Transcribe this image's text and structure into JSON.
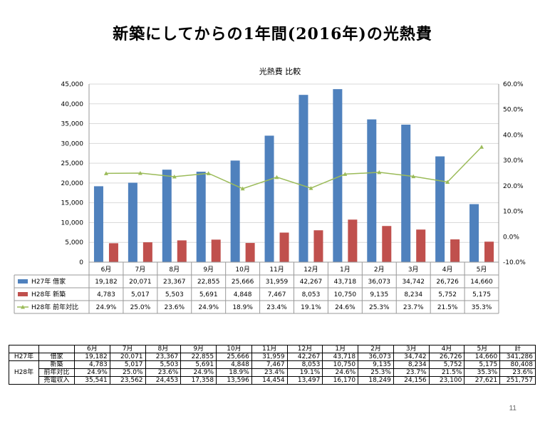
{
  "slide": {
    "title": "新築にしてからの1年間(2016年)の光熱費",
    "page_number": "11"
  },
  "chart_data": {
    "type": "bar",
    "title": "光熱費 比較",
    "categories": [
      "6月",
      "7月",
      "8月",
      "9月",
      "10月",
      "11月",
      "12月",
      "1月",
      "2月",
      "3月",
      "4月",
      "5月"
    ],
    "series": [
      {
        "name": "H27年 借家",
        "type": "bar",
        "color": "#4F81BD",
        "values": [
          19182,
          20071,
          23367,
          22855,
          25666,
          31959,
          42267,
          43718,
          36073,
          34742,
          26726,
          14660
        ],
        "labels": [
          "19,182",
          "20,071",
          "23,367",
          "22,855",
          "25,666",
          "31,959",
          "42,267",
          "43,718",
          "36,073",
          "34,742",
          "26,726",
          "14,660"
        ]
      },
      {
        "name": "H28年 新築",
        "type": "bar",
        "color": "#C0504D",
        "values": [
          4783,
          5017,
          5503,
          5691,
          4848,
          7467,
          8053,
          10750,
          9135,
          8234,
          5752,
          5175
        ],
        "labels": [
          "4,783",
          "5,017",
          "5,503",
          "5,691",
          "4,848",
          "7,467",
          "8,053",
          "10,750",
          "9,135",
          "8,234",
          "5,752",
          "5,175"
        ]
      },
      {
        "name": "H28年 前年対比",
        "type": "line",
        "axis": "right",
        "color": "#9BBB59",
        "values": [
          24.9,
          25.0,
          23.6,
          24.9,
          18.9,
          23.4,
          19.1,
          24.6,
          25.3,
          23.7,
          21.5,
          35.3
        ],
        "labels": [
          "24.9%",
          "25.0%",
          "23.6%",
          "24.9%",
          "18.9%",
          "23.4%",
          "19.1%",
          "24.6%",
          "25.3%",
          "23.7%",
          "21.5%",
          "35.3%"
        ]
      }
    ],
    "y_left": {
      "min": 0,
      "max": 45000,
      "step": 5000,
      "ticks": [
        "0",
        "5,000",
        "10,000",
        "15,000",
        "20,000",
        "25,000",
        "30,000",
        "35,000",
        "40,000",
        "45,000"
      ]
    },
    "y_right": {
      "min": -10,
      "max": 60,
      "step": 10,
      "ticks": [
        "-10.0%",
        "0.0%",
        "10.0%",
        "20.0%",
        "30.0%",
        "40.0%",
        "50.0%",
        "60.0%"
      ]
    },
    "grid": true,
    "legend": "data-table-below"
  },
  "summary_table": {
    "headers": [
      "6月",
      "7月",
      "8月",
      "9月",
      "10月",
      "11月",
      "12月",
      "1月",
      "2月",
      "3月",
      "4月",
      "5月",
      "計"
    ],
    "group_h27": "H27年",
    "group_h28": "H28年",
    "rows": [
      {
        "label": "借家",
        "values": [
          "19,182",
          "20,071",
          "23,367",
          "22,855",
          "25,666",
          "31,959",
          "42,267",
          "43,718",
          "36,073",
          "34,742",
          "26,726",
          "14,660",
          "341,286"
        ]
      },
      {
        "label": "新築",
        "values": [
          "4,783",
          "5,017",
          "5,503",
          "5,691",
          "4,848",
          "7,467",
          "8,053",
          "10,750",
          "9,135",
          "8,234",
          "5,752",
          "5,175",
          "80,408"
        ]
      },
      {
        "label": "前年対比",
        "values": [
          "24.9%",
          "25.0%",
          "23.6%",
          "24.9%",
          "18.9%",
          "23.4%",
          "19.1%",
          "24.6%",
          "25.3%",
          "23.7%",
          "21.5%",
          "35.3%",
          "23.6%"
        ]
      },
      {
        "label": "売電収入",
        "values": [
          "35,541",
          "23,562",
          "24,453",
          "17,358",
          "13,596",
          "14,454",
          "13,497",
          "16,170",
          "18,249",
          "24,156",
          "23,100",
          "27,621",
          "251,757"
        ]
      }
    ]
  }
}
